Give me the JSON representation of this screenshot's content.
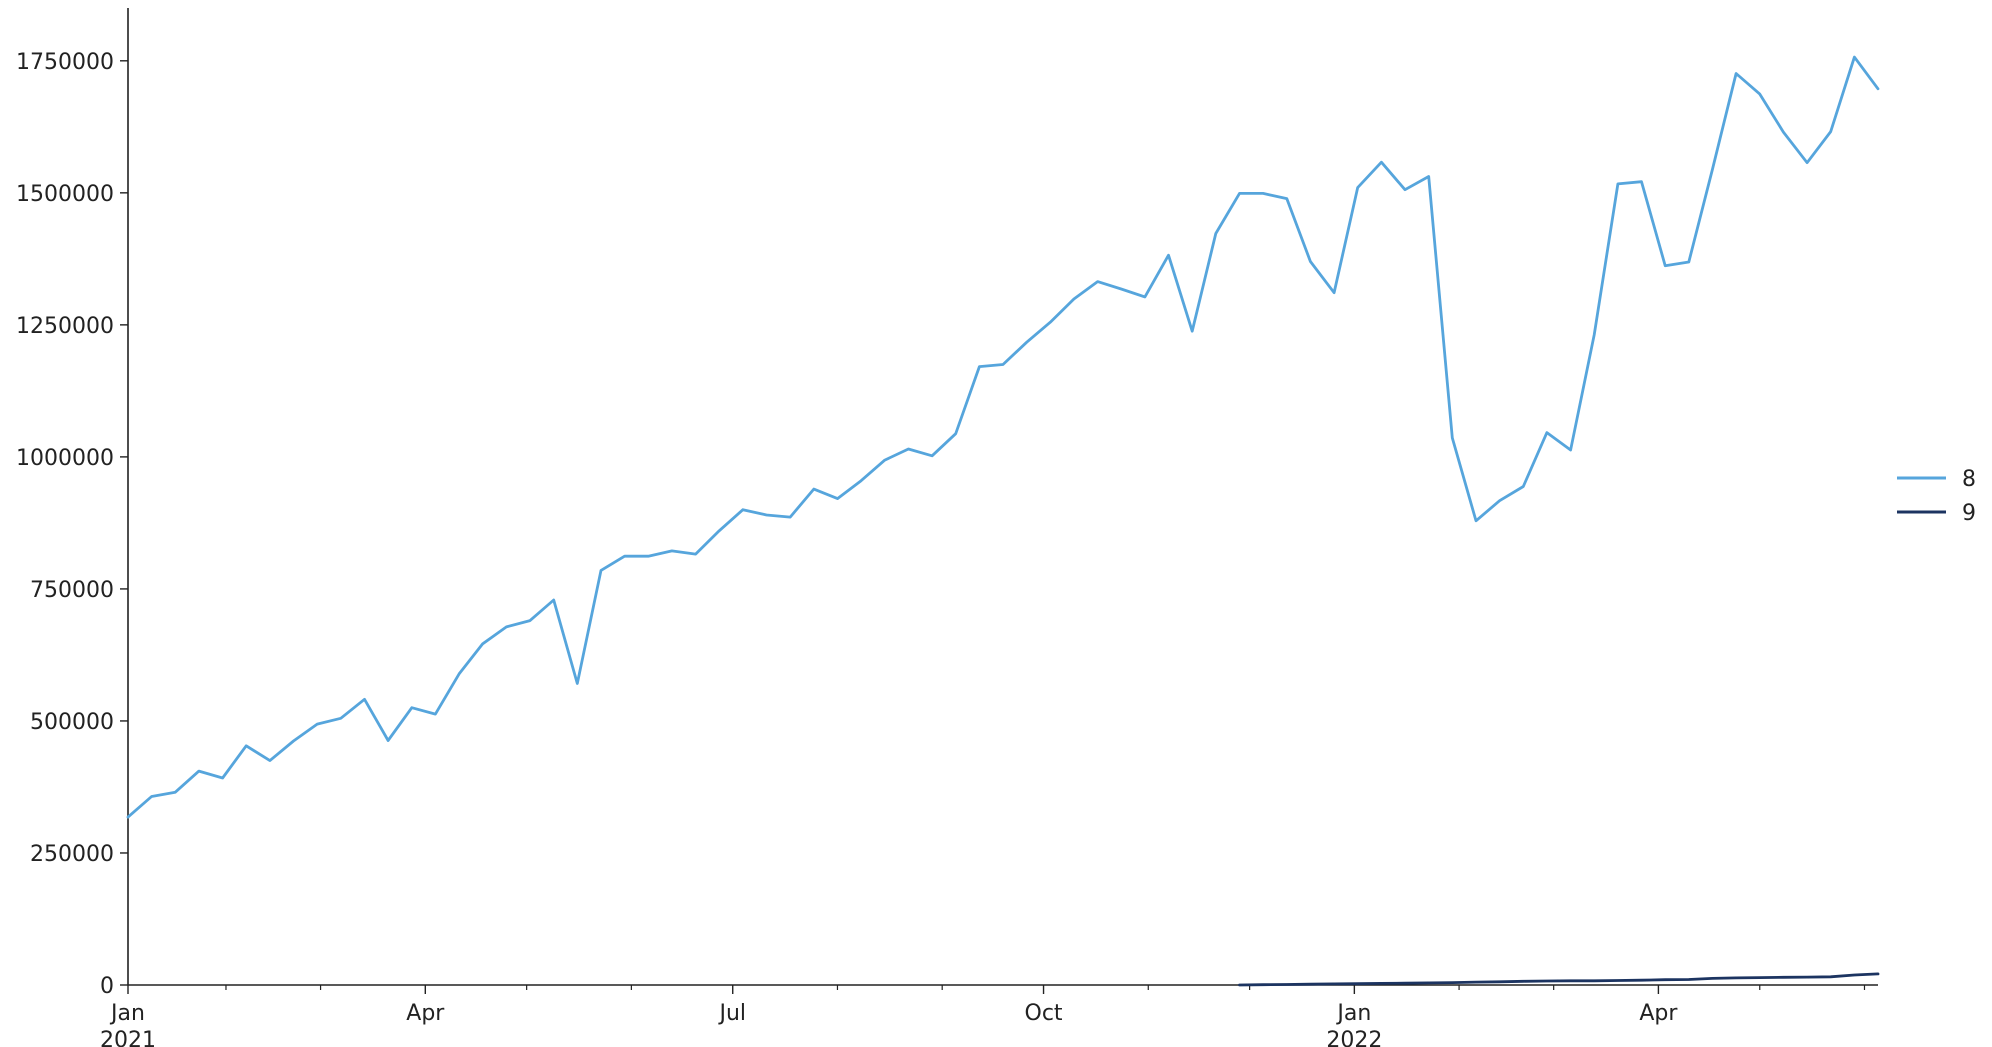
{
  "chart_data": {
    "type": "line",
    "title": "",
    "xlabel": "",
    "ylabel": "",
    "xlim": [
      "2021-01-03",
      "2022-06-05"
    ],
    "ylim": [
      0,
      1850000
    ],
    "grid": false,
    "legend_position": "right",
    "y_ticks": [
      0,
      250000,
      500000,
      750000,
      1000000,
      1250000,
      1500000,
      1750000
    ],
    "y_tick_labels": [
      "0",
      "250000",
      "500000",
      "750000",
      "1000000",
      "1250000",
      "1500000",
      "1750000"
    ],
    "x_major_ticks": [
      {
        "date": "2021-01-01",
        "line1": "Jan",
        "line2": "2021"
      },
      {
        "date": "2021-04-01",
        "line1": "Apr",
        "line2": ""
      },
      {
        "date": "2021-07-01",
        "line1": "Jul",
        "line2": ""
      },
      {
        "date": "2021-10-01",
        "line1": "Oct",
        "line2": ""
      },
      {
        "date": "2022-01-01",
        "line1": "Jan",
        "line2": "2022"
      },
      {
        "date": "2022-04-01",
        "line1": "Apr",
        "line2": ""
      }
    ],
    "x_minor_ticks": [
      "2021-02-01",
      "2021-03-01",
      "2021-05-01",
      "2021-06-01",
      "2021-08-01",
      "2021-09-01",
      "2021-11-01",
      "2021-12-01",
      "2022-02-01",
      "2022-03-01",
      "2022-05-01",
      "2022-06-01"
    ],
    "series": [
      {
        "name": "8",
        "color": "#56a5dc",
        "x": [
          "2021-01-03",
          "2021-01-10",
          "2021-01-17",
          "2021-01-24",
          "2021-01-31",
          "2021-02-07",
          "2021-02-14",
          "2021-02-21",
          "2021-02-28",
          "2021-03-07",
          "2021-03-14",
          "2021-03-21",
          "2021-03-28",
          "2021-04-04",
          "2021-04-11",
          "2021-04-18",
          "2021-04-25",
          "2021-05-02",
          "2021-05-09",
          "2021-05-16",
          "2021-05-23",
          "2021-05-30",
          "2021-06-06",
          "2021-06-13",
          "2021-06-20",
          "2021-06-27",
          "2021-07-04",
          "2021-07-11",
          "2021-07-18",
          "2021-07-25",
          "2021-08-01",
          "2021-08-08",
          "2021-08-15",
          "2021-08-22",
          "2021-08-29",
          "2021-09-05",
          "2021-09-12",
          "2021-09-19",
          "2021-09-26",
          "2021-10-03",
          "2021-10-10",
          "2021-10-17",
          "2021-10-24",
          "2021-10-31",
          "2021-11-07",
          "2021-11-14",
          "2021-11-21",
          "2021-11-28",
          "2021-12-05",
          "2021-12-12",
          "2021-12-19",
          "2021-12-26",
          "2022-01-02",
          "2022-01-09",
          "2022-01-16",
          "2022-01-23",
          "2022-01-30",
          "2022-02-06",
          "2022-02-13",
          "2022-02-20",
          "2022-02-27",
          "2022-03-06",
          "2022-03-13",
          "2022-03-20",
          "2022-03-27",
          "2022-04-03",
          "2022-04-10",
          "2022-04-17",
          "2022-04-24",
          "2022-05-01",
          "2022-05-08",
          "2022-05-15",
          "2022-05-22",
          "2022-05-29",
          "2022-06-05"
        ],
        "values": [
          318000,
          357000,
          365000,
          405000,
          392000,
          453000,
          425000,
          462000,
          494000,
          505000,
          541000,
          463000,
          525000,
          513000,
          589000,
          646000,
          678000,
          690000,
          729000,
          571000,
          785000,
          812000,
          812000,
          822000,
          816000,
          860000,
          900000,
          890000,
          886000,
          939000,
          921000,
          955000,
          994000,
          1015000,
          1002000,
          1044000,
          1171000,
          1175000,
          1217000,
          1255000,
          1299000,
          1332000,
          1318000,
          1303000,
          1382000,
          1238000,
          1423000,
          1499000,
          1499000,
          1489000,
          1370000,
          1311000,
          1510000,
          1558000,
          1506000,
          1531000,
          1036000,
          879000,
          917000,
          944000,
          1046000,
          1013000,
          1231000,
          1517000,
          1521000,
          1362000,
          1369000,
          1545000,
          1726000,
          1687000,
          1615000,
          1557000,
          1616000,
          1757000,
          1697000
        ]
      },
      {
        "name": "9",
        "color": "#1c3461",
        "x": [
          "2021-11-28",
          "2021-12-05",
          "2021-12-12",
          "2021-12-19",
          "2021-12-26",
          "2022-01-02",
          "2022-01-09",
          "2022-01-16",
          "2022-01-23",
          "2022-01-30",
          "2022-02-06",
          "2022-02-13",
          "2022-02-20",
          "2022-02-27",
          "2022-03-06",
          "2022-03-13",
          "2022-03-20",
          "2022-03-27",
          "2022-04-03",
          "2022-04-10",
          "2022-04-17",
          "2022-04-24",
          "2022-05-01",
          "2022-05-08",
          "2022-05-15",
          "2022-05-22",
          "2022-05-29",
          "2022-06-05"
        ],
        "values": [
          0,
          500,
          1000,
          1500,
          2000,
          2500,
          3000,
          3500,
          4000,
          4500,
          5500,
          6000,
          7000,
          7500,
          8000,
          8000,
          8500,
          9000,
          10000,
          10500,
          12500,
          13500,
          14000,
          14500,
          15000,
          15500,
          19000,
          21000
        ]
      }
    ]
  }
}
